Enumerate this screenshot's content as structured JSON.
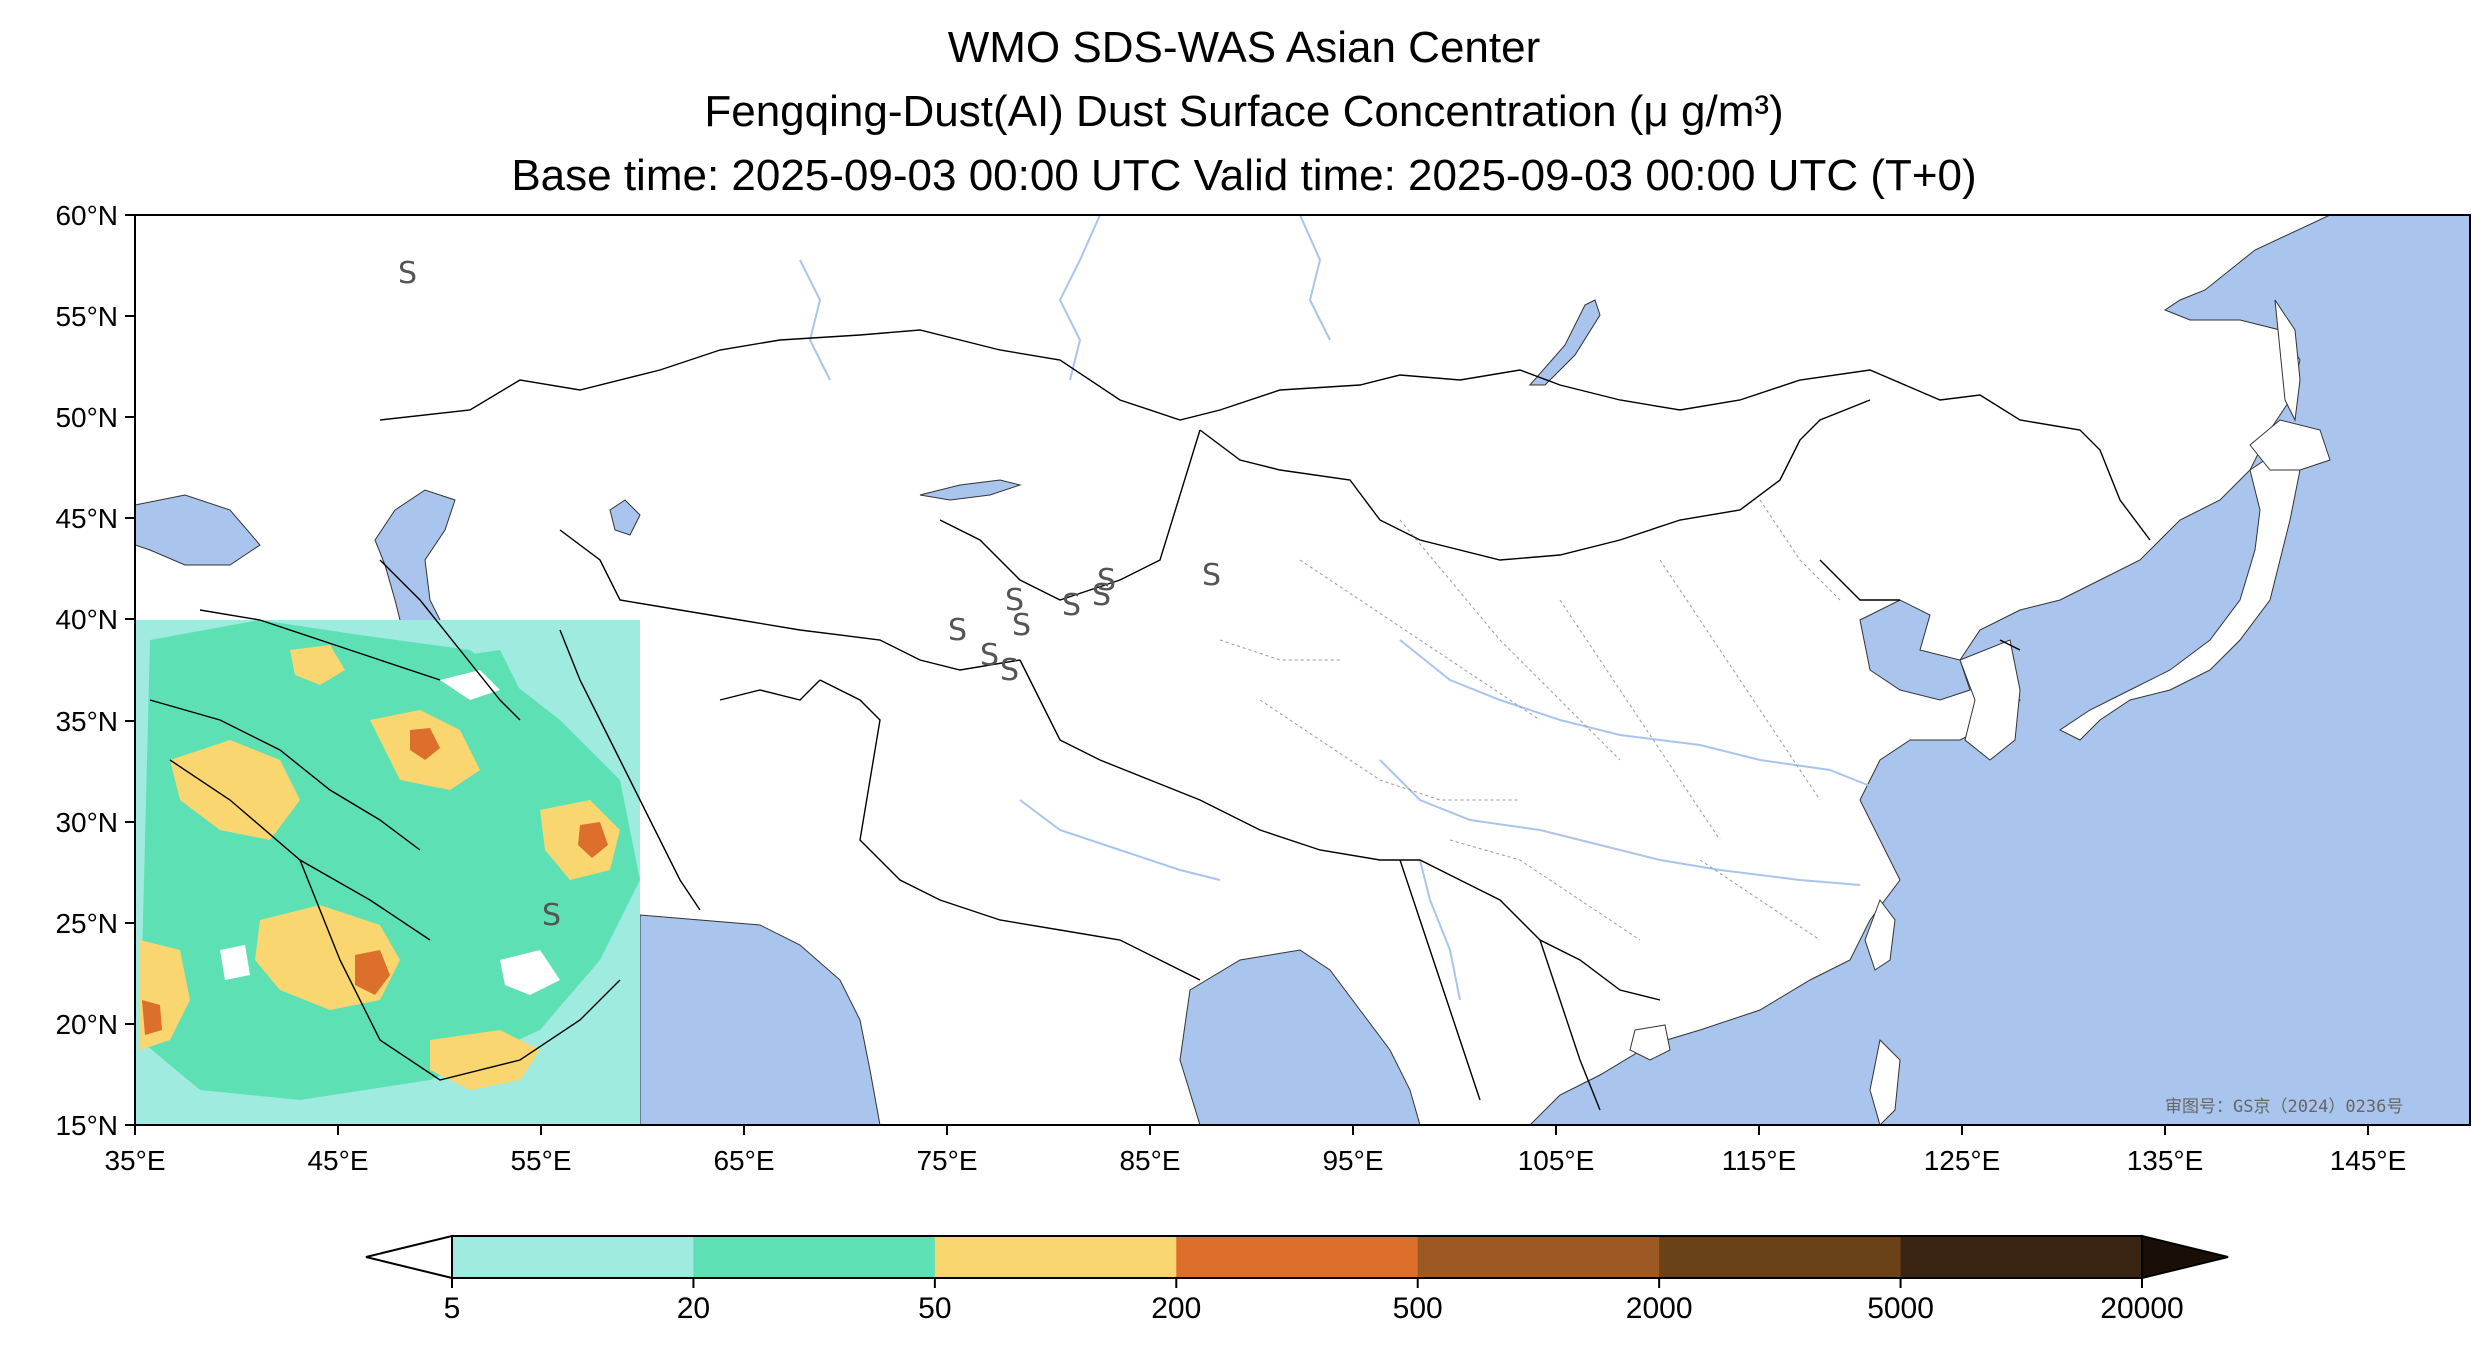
{
  "title": {
    "line1": "WMO SDS-WAS Asian Center",
    "line2": "Fengqing-Dust(AI) Dust Surface Concentration (μ g/m³)",
    "line3": "Base time: 2025-09-03 00:00 UTC Valid time: 2025-09-03 00:00 UTC (T+0)"
  },
  "map": {
    "lon_ticks": [
      "35°E",
      "45°E",
      "55°E",
      "65°E",
      "75°E",
      "85°E",
      "95°E",
      "105°E",
      "115°E",
      "125°E",
      "135°E",
      "145°E"
    ],
    "lat_ticks": [
      "60°N",
      "55°N",
      "50°N",
      "45°N",
      "40°N",
      "35°N",
      "30°N",
      "25°N",
      "20°N",
      "15°N"
    ],
    "extent": {
      "lon": [
        35,
        150
      ],
      "lat": [
        15,
        60
      ]
    },
    "watermark": "审图号：GS京（2024）0236号",
    "ocean_color": "#a9c4ed",
    "land_color": "#ffffff"
  },
  "colorbar": {
    "levels": [
      "5",
      "20",
      "50",
      "200",
      "500",
      "2000",
      "5000",
      "20000"
    ],
    "colors": [
      "#a0ebdf",
      "#5ee0b5",
      "#f9d66f",
      "#db6f2b",
      "#9c5923",
      "#6b4118",
      "#3a2412"
    ],
    "extend": "both"
  }
}
